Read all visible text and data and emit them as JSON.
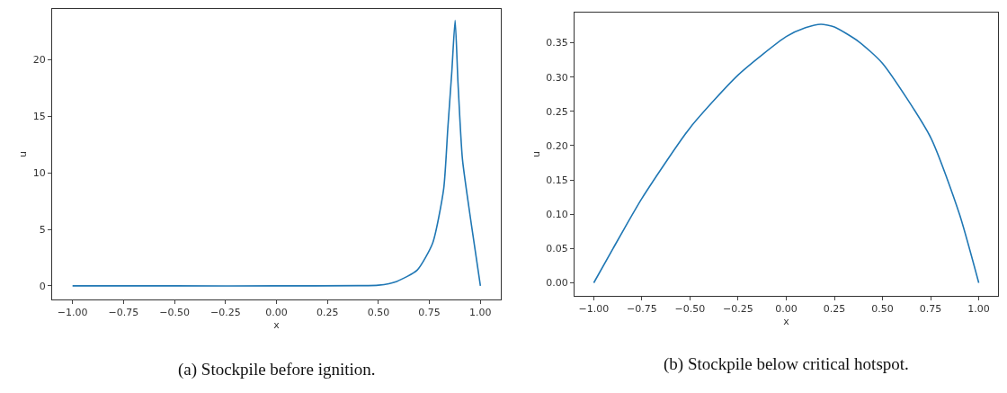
{
  "chart_data": [
    {
      "type": "line",
      "xlabel": "x",
      "ylabel": "u",
      "annotations": [
        "(a) Stockpile before ignition."
      ],
      "x": [
        -1,
        -0.5,
        0,
        0.4,
        0.5,
        0.59,
        0.69,
        0.766,
        0.82,
        0.84,
        0.86,
        0.876,
        0.89,
        0.912,
        0.956,
        1
      ],
      "series": [
        {
          "color": "#1f77b4",
          "values": [
            0,
            0,
            0,
            0.02,
            0.06,
            0.4,
            1.4,
            3.8,
            8.6,
            13.9,
            19,
            23.5,
            18,
            11.2,
            5.4,
            0
          ]
        }
      ],
      "xlim": [
        -1.1,
        1.1
      ],
      "xticks": [
        {
          "value": -1,
          "label": "−1.00"
        },
        {
          "value": -0.75,
          "label": "−0.75"
        },
        {
          "value": -0.5,
          "label": "−0.50"
        },
        {
          "value": -0.25,
          "label": "−0.25"
        },
        {
          "value": 0,
          "label": "0.00"
        },
        {
          "value": 0.25,
          "label": "0.25"
        },
        {
          "value": 0.5,
          "label": "0.50"
        },
        {
          "value": 0.75,
          "label": "0.75"
        },
        {
          "value": 1,
          "label": "1.00"
        }
      ],
      "ylim": [
        -1.2,
        24.5
      ],
      "yticks": [
        0,
        5,
        10,
        15,
        20
      ]
    },
    {
      "type": "line",
      "xlabel": "x",
      "ylabel": "u",
      "annotations": [
        "(b) Stockpile below critical hotspot."
      ],
      "x": [
        -1,
        -0.9,
        -0.75,
        -0.5,
        -0.25,
        0,
        0.1,
        0.18,
        0.25,
        0.375,
        0.5,
        0.75,
        0.9,
        1
      ],
      "series": [
        {
          "color": "#1f77b4",
          "values": [
            0,
            0.05,
            0.123,
            0.226,
            0.303,
            0.359,
            0.372,
            0.377,
            0.373,
            0.352,
            0.32,
            0.212,
            0.1,
            0
          ]
        }
      ],
      "xlim": [
        -1.1,
        1.1
      ],
      "xticks": [
        {
          "value": -1,
          "label": "−1.00"
        },
        {
          "value": -0.75,
          "label": "−0.75"
        },
        {
          "value": -0.5,
          "label": "−0.50"
        },
        {
          "value": -0.25,
          "label": "−0.25"
        },
        {
          "value": 0,
          "label": "0.00"
        },
        {
          "value": 0.25,
          "label": "0.25"
        },
        {
          "value": 0.5,
          "label": "0.50"
        },
        {
          "value": 0.75,
          "label": "0.75"
        },
        {
          "value": 1,
          "label": "1.00"
        }
      ],
      "ylim": [
        -0.019,
        0.394
      ],
      "yticks": [
        {
          "value": 0,
          "label": "0.00"
        },
        {
          "value": 0.05,
          "label": "0.05"
        },
        {
          "value": 0.1,
          "label": "0.10"
        },
        {
          "value": 0.15,
          "label": "0.15"
        },
        {
          "value": 0.2,
          "label": "0.20"
        },
        {
          "value": 0.25,
          "label": "0.25"
        },
        {
          "value": 0.3,
          "label": "0.30"
        },
        {
          "value": 0.35,
          "label": "0.35"
        }
      ]
    }
  ]
}
